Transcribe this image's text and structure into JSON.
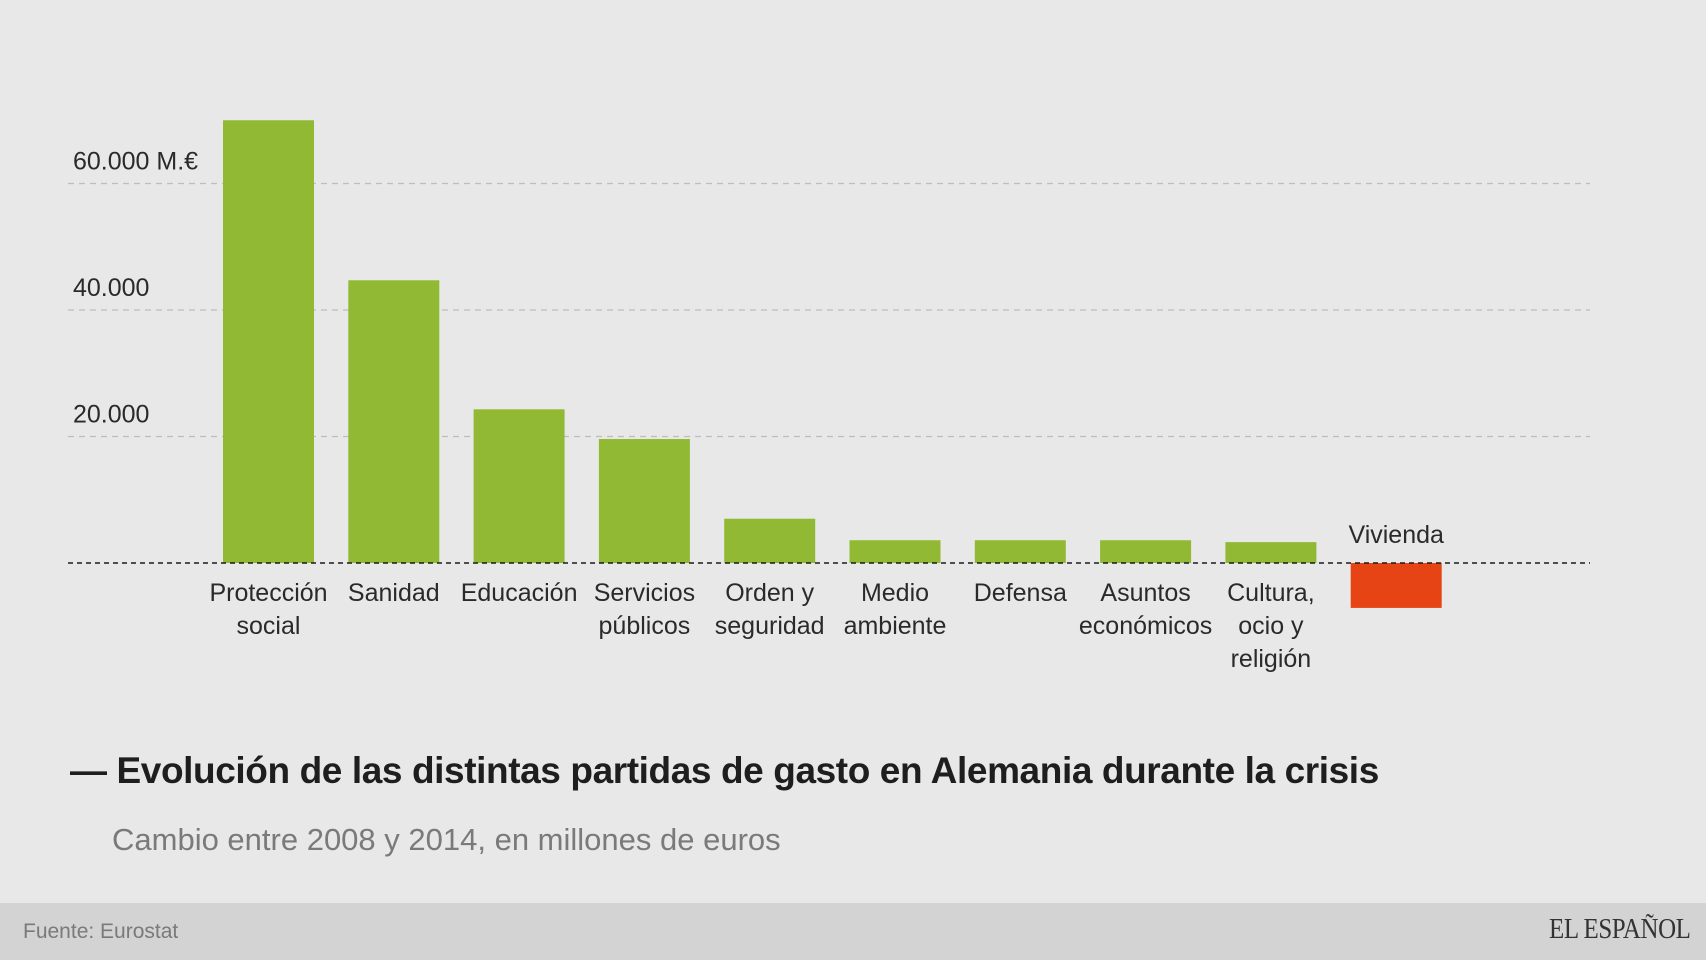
{
  "chart_data": {
    "type": "bar",
    "title": "Evolución de las distintas partidas de gasto en Alemania durante la crisis",
    "subtitle": "Cambio entre 2008 y 2014, en millones de euros",
    "xlabel": "",
    "ylabel": "",
    "categories": [
      [
        "Protección",
        "social"
      ],
      [
        "Sanidad"
      ],
      [
        "Educación"
      ],
      [
        "Servicios",
        "públicos"
      ],
      [
        "Orden y",
        "seguridad"
      ],
      [
        "Medio",
        "ambiente"
      ],
      [
        "Defensa"
      ],
      [
        "Asuntos",
        "económicos"
      ],
      [
        "Cultura,",
        "ocio y",
        "religión"
      ],
      [
        "Vivienda"
      ]
    ],
    "values": [
      70000,
      44700,
      24300,
      19600,
      7000,
      3600,
      3600,
      3600,
      3300,
      -7100
    ],
    "ylim": [
      -10000,
      75000
    ],
    "yticks": [
      {
        "value": 20000,
        "label": "20.000"
      },
      {
        "value": 40000,
        "label": "40.000"
      },
      {
        "value": 60000,
        "label": "60.000 M.€"
      }
    ],
    "grid": true,
    "colors": {
      "positive": "#92b933",
      "negative": "#e64415",
      "axis": "#1a1a1a",
      "grid": "#bdbdbd"
    }
  },
  "header": {
    "title_prefix": "—",
    "title": "Evolución de las distintas partidas de gasto en Alemania durante la crisis",
    "subtitle": "Cambio entre 2008 y 2014, en millones de euros"
  },
  "footer": {
    "source": "Fuente: Eurostat",
    "logo": "EL ESPAÑOL"
  }
}
